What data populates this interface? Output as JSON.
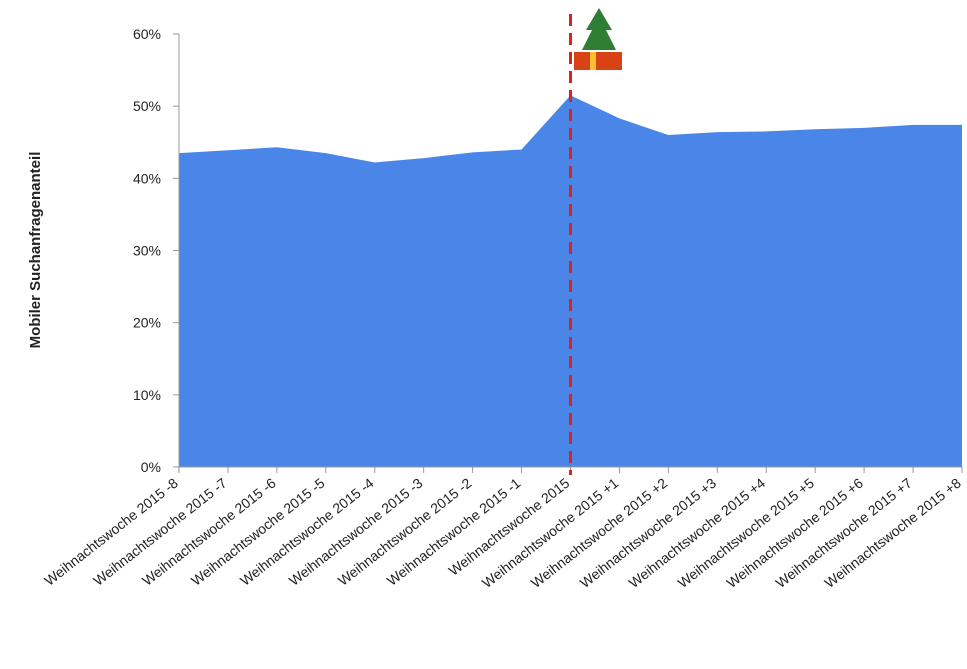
{
  "chart_data": {
    "type": "area",
    "y_label": "Mobiler Suchanfragenanteil",
    "categories": [
      "Weihnachtswoche 2015 -8",
      "Weihnachtswoche 2015 -7",
      "Weihnachtswoche 2015 -6",
      "Weihnachtswoche 2015 -5",
      "Weihnachtswoche 2015 -4",
      "Weihnachtswoche 2015 -3",
      "Weihnachtswoche 2015 -2",
      "Weihnachtswoche 2015 -1",
      "Weihnachtswoche 2015",
      "Weihnachtswoche 2015 +1",
      "Weihnachtswoche 2015 +2",
      "Weihnachtswoche 2015 +3",
      "Weihnachtswoche 2015 +4",
      "Weihnachtswoche 2015 +5",
      "Weihnachtswoche 2015 +6",
      "Weihnachtswoche 2015 +7",
      "Weihnachtswoche 2015 +8"
    ],
    "values": [
      43.5,
      43.9,
      44.3,
      43.5,
      42.2,
      42.8,
      43.6,
      44.0,
      51.5,
      48.3,
      46.0,
      46.4,
      46.5,
      46.8,
      47.0,
      47.4,
      47.4
    ],
    "color": "#4a86e8",
    "ylim": [
      0,
      60
    ],
    "yticks": [
      {
        "value": 0,
        "label": "0%"
      },
      {
        "value": 10,
        "label": "10%"
      },
      {
        "value": 20,
        "label": "20%"
      },
      {
        "value": 30,
        "label": "30%"
      },
      {
        "value": 40,
        "label": "40%"
      },
      {
        "value": 50,
        "label": "50%"
      },
      {
        "value": 60,
        "label": "60%"
      }
    ]
  }
}
